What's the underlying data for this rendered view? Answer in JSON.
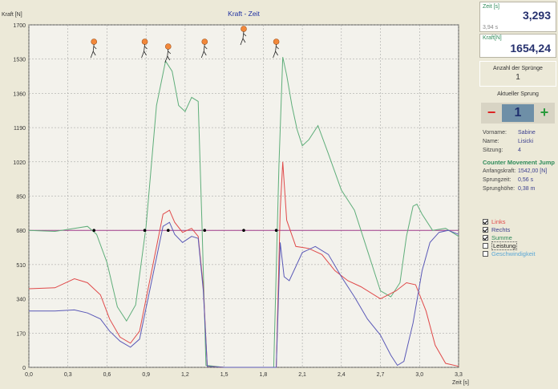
{
  "chart": {
    "title": "Kraft - Zeit",
    "ylabel": "Kraft [N]",
    "xlabel": "Zeit [s]",
    "yticks": [
      "1700",
      "1530",
      "1360",
      "1190",
      "1020",
      "850",
      "680",
      "510",
      "340",
      "170",
      "0"
    ],
    "xticks": [
      "0,0",
      "0,3",
      "0,6",
      "0,9",
      "1,2",
      "1,5",
      "1,8",
      "2,1",
      "2,4",
      "2,7",
      "3,0",
      "3,3"
    ]
  },
  "chart_data": {
    "type": "line",
    "title": "Kraft - Zeit",
    "xlabel": "Zeit [s]",
    "ylabel": "Kraft [N]",
    "xlim": [
      0,
      3.3
    ],
    "ylim": [
      0,
      1700
    ],
    "grid": true,
    "reference_line": 680,
    "series": [
      {
        "name": "Summe",
        "color": "#5fae7a",
        "points": [
          [
            0,
            680
          ],
          [
            0.2,
            675
          ],
          [
            0.35,
            690
          ],
          [
            0.45,
            700
          ],
          [
            0.52,
            660
          ],
          [
            0.6,
            520
          ],
          [
            0.68,
            300
          ],
          [
            0.75,
            230
          ],
          [
            0.82,
            310
          ],
          [
            0.9,
            700
          ],
          [
            0.98,
            1300
          ],
          [
            1.05,
            1520
          ],
          [
            1.1,
            1470
          ],
          [
            1.15,
            1300
          ],
          [
            1.2,
            1270
          ],
          [
            1.25,
            1340
          ],
          [
            1.3,
            1320
          ],
          [
            1.33,
            700
          ],
          [
            1.36,
            10
          ],
          [
            1.5,
            0
          ],
          [
            1.7,
            0
          ],
          [
            1.88,
            0
          ],
          [
            1.92,
            1000
          ],
          [
            1.95,
            1540
          ],
          [
            1.98,
            1450
          ],
          [
            2.02,
            1300
          ],
          [
            2.06,
            1180
          ],
          [
            2.1,
            1100
          ],
          [
            2.15,
            1130
          ],
          [
            2.22,
            1200
          ],
          [
            2.3,
            1060
          ],
          [
            2.4,
            880
          ],
          [
            2.5,
            780
          ],
          [
            2.6,
            580
          ],
          [
            2.7,
            380
          ],
          [
            2.78,
            350
          ],
          [
            2.85,
            420
          ],
          [
            2.9,
            650
          ],
          [
            2.95,
            800
          ],
          [
            2.98,
            810
          ],
          [
            3.02,
            760
          ],
          [
            3.1,
            680
          ],
          [
            3.2,
            690
          ],
          [
            3.3,
            650
          ]
        ]
      },
      {
        "name": "Links",
        "color": "#e04a4a",
        "points": [
          [
            0,
            390
          ],
          [
            0.2,
            395
          ],
          [
            0.35,
            440
          ],
          [
            0.45,
            420
          ],
          [
            0.55,
            360
          ],
          [
            0.62,
            240
          ],
          [
            0.7,
            150
          ],
          [
            0.78,
            120
          ],
          [
            0.85,
            180
          ],
          [
            0.95,
            500
          ],
          [
            1.03,
            760
          ],
          [
            1.08,
            780
          ],
          [
            1.12,
            720
          ],
          [
            1.18,
            670
          ],
          [
            1.25,
            690
          ],
          [
            1.3,
            650
          ],
          [
            1.34,
            400
          ],
          [
            1.37,
            5
          ],
          [
            1.5,
            0
          ],
          [
            1.9,
            0
          ],
          [
            1.93,
            780
          ],
          [
            1.95,
            1020
          ],
          [
            1.98,
            730
          ],
          [
            2.05,
            600
          ],
          [
            2.15,
            590
          ],
          [
            2.25,
            560
          ],
          [
            2.35,
            480
          ],
          [
            2.45,
            430
          ],
          [
            2.55,
            400
          ],
          [
            2.7,
            340
          ],
          [
            2.82,
            380
          ],
          [
            2.9,
            420
          ],
          [
            2.97,
            410
          ],
          [
            3.05,
            280
          ],
          [
            3.12,
            110
          ],
          [
            3.2,
            20
          ],
          [
            3.3,
            5
          ]
        ]
      },
      {
        "name": "Rechts",
        "color": "#5a59b7",
        "points": [
          [
            0,
            280
          ],
          [
            0.2,
            280
          ],
          [
            0.35,
            285
          ],
          [
            0.45,
            270
          ],
          [
            0.55,
            240
          ],
          [
            0.62,
            180
          ],
          [
            0.7,
            130
          ],
          [
            0.78,
            100
          ],
          [
            0.85,
            140
          ],
          [
            0.95,
            450
          ],
          [
            1.03,
            700
          ],
          [
            1.08,
            720
          ],
          [
            1.12,
            660
          ],
          [
            1.18,
            620
          ],
          [
            1.25,
            650
          ],
          [
            1.3,
            640
          ],
          [
            1.34,
            380
          ],
          [
            1.37,
            5
          ],
          [
            1.5,
            0
          ],
          [
            1.9,
            0
          ],
          [
            1.93,
            620
          ],
          [
            1.96,
            450
          ],
          [
            2.0,
            430
          ],
          [
            2.1,
            570
          ],
          [
            2.2,
            600
          ],
          [
            2.3,
            560
          ],
          [
            2.4,
            450
          ],
          [
            2.5,
            350
          ],
          [
            2.6,
            240
          ],
          [
            2.7,
            160
          ],
          [
            2.78,
            60
          ],
          [
            2.83,
            10
          ],
          [
            2.88,
            30
          ],
          [
            2.95,
            220
          ],
          [
            3.02,
            480
          ],
          [
            3.08,
            620
          ],
          [
            3.15,
            670
          ],
          [
            3.22,
            680
          ],
          [
            3.3,
            660
          ]
        ]
      }
    ]
  },
  "side": {
    "zeit_label": "Zeit [s]",
    "zeit_value": "3,293",
    "zeit_sub": "3,94 s",
    "kraft_label": "Kraft[N]",
    "kraft_value": "1654,24",
    "anzahl_label": "Anzahl der Sprünge",
    "anzahl_value": "1",
    "aktueller_label": "Aktueller Sprung",
    "aktueller_value": "1",
    "minus": "−",
    "plus": "+",
    "vorname_k": "Vorname:",
    "vorname_v": "Sabine",
    "name_k": "Name:",
    "name_v": "Lisicki",
    "sitzung_k": "Sitzung:",
    "sitzung_v": "4",
    "test_title": "Counter Movement Jump",
    "anfang_k": "Anfangskraft:",
    "anfang_v": "1542,00 [N]",
    "sprungzeit_k": "Sprungzeit:",
    "sprungzeit_v": "0,56 s",
    "sprunghoehe_k": "Sprunghöhe:",
    "sprunghoehe_v": "0,38 m",
    "checkboxes": [
      {
        "label": "Links",
        "checked": true,
        "color": "#e04a4a"
      },
      {
        "label": "Rechts",
        "checked": true,
        "color": "#3b3f8f"
      },
      {
        "label": "Summe",
        "checked": true,
        "color": "#2f8b5a"
      },
      {
        "label": "Leistung",
        "checked": false,
        "color": "#222"
      },
      {
        "label": "Geschwindigkeit",
        "checked": false,
        "color": "#5aa7d6"
      }
    ]
  }
}
